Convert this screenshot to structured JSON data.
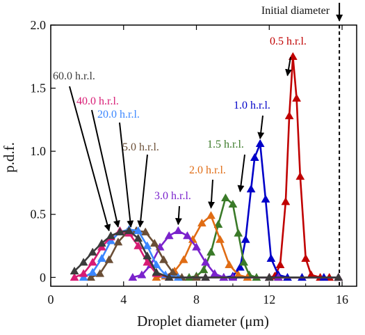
{
  "chart_data": {
    "type": "line",
    "xlabel": "Droplet diameter (μm)",
    "ylabel": "p.d.f.",
    "xlim": [
      0,
      16.8
    ],
    "ylim": [
      -0.07,
      2.0
    ],
    "xticks": [
      0,
      4,
      8,
      12,
      16
    ],
    "xtick_labels": [
      "0",
      "4",
      "8",
      "12",
      "16"
    ],
    "yticks": [
      0,
      0.5,
      1.0,
      1.5,
      2.0
    ],
    "ytick_labels": [
      "0",
      "0.5",
      "1.0",
      "1.5",
      "2.0"
    ],
    "reference_line": {
      "x": 15.85,
      "label": "Initial diameter",
      "style": "dashed"
    },
    "series": [
      {
        "name": "0.5 h.r.l.",
        "color": "#c00000",
        "x": [
          12.0,
          12.3,
          12.6,
          12.9,
          13.1,
          13.3,
          13.5,
          13.7,
          14.0,
          14.3,
          14.8,
          15.3,
          15.8
        ],
        "y": [
          0.0,
          0.01,
          0.1,
          0.6,
          1.28,
          1.75,
          1.42,
          0.8,
          0.15,
          0.02,
          0.0,
          0.0,
          0.0
        ],
        "annotation": {
          "text": "0.5 h.r.l.",
          "target": [
            13.0,
            1.6
          ]
        }
      },
      {
        "name": "1.0 h.r.l.",
        "color": "#0000c8",
        "x": [
          9.5,
          10.0,
          10.4,
          10.7,
          11.0,
          11.2,
          11.5,
          11.8,
          12.1,
          12.5,
          13.0,
          13.8,
          15.0,
          15.8
        ],
        "y": [
          0.0,
          0.01,
          0.08,
          0.3,
          0.7,
          0.95,
          1.06,
          0.62,
          0.15,
          0.02,
          0.0,
          0.0,
          0.0,
          0.0
        ],
        "annotation": {
          "text": "1.0 h.r.l.",
          "target": [
            11.5,
            1.1
          ]
        }
      },
      {
        "name": "1.5 h.r.l.",
        "color": "#3a7a28",
        "x": [
          7.6,
          8.0,
          8.4,
          8.8,
          9.2,
          9.6,
          10.0,
          10.3,
          10.6,
          10.9,
          11.3,
          12.5,
          15.8
        ],
        "y": [
          0.0,
          0.01,
          0.06,
          0.2,
          0.42,
          0.63,
          0.58,
          0.35,
          0.12,
          0.02,
          0.0,
          0.0,
          0.0
        ],
        "annotation": {
          "text": "1.5 h.r.l.",
          "target": [
            10.4,
            0.68
          ]
        }
      },
      {
        "name": "2.0 h.r.l.",
        "color": "#e06c14",
        "x": [
          5.8,
          6.3,
          6.8,
          7.3,
          7.8,
          8.3,
          8.8,
          9.3,
          9.8,
          10.3,
          10.8,
          12.5,
          15.8
        ],
        "y": [
          0.0,
          0.01,
          0.05,
          0.14,
          0.3,
          0.43,
          0.49,
          0.3,
          0.1,
          0.02,
          0.0,
          0.0,
          0.0
        ],
        "annotation": {
          "text": "2.0 h.r.l.",
          "target": [
            8.8,
            0.55
          ]
        }
      },
      {
        "name": "3.0 h.r.l.",
        "color": "#7a22cc",
        "x": [
          4.5,
          5.0,
          5.5,
          6.0,
          6.5,
          7.0,
          7.5,
          8.0,
          8.5,
          9.0,
          9.5,
          10.0,
          12.5,
          15.8
        ],
        "y": [
          0.0,
          0.02,
          0.1,
          0.24,
          0.33,
          0.37,
          0.33,
          0.24,
          0.12,
          0.03,
          0.0,
          0.0,
          0.0,
          0.0
        ],
        "annotation": {
          "text": "3.0 h.r.l.",
          "target": [
            7.0,
            0.42
          ]
        }
      },
      {
        "name": "5.0 h.r.l.",
        "color": "#6a4e36",
        "x": [
          2.2,
          2.7,
          3.2,
          3.7,
          4.2,
          4.7,
          5.2,
          5.7,
          6.2,
          6.7,
          7.2,
          8.0,
          12.0,
          15.8
        ],
        "y": [
          0.0,
          0.03,
          0.14,
          0.28,
          0.36,
          0.37,
          0.36,
          0.27,
          0.14,
          0.04,
          0.0,
          0.0,
          0.0,
          0.0
        ],
        "annotation": {
          "text": "5.0 h.r.l.",
          "target": [
            4.9,
            0.4
          ]
        }
      },
      {
        "name": "20.0 h.r.l.",
        "color": "#3a86ff",
        "x": [
          1.8,
          2.3,
          2.8,
          3.3,
          3.8,
          4.3,
          4.8,
          5.3,
          5.8,
          6.3,
          7.0,
          8.5,
          12.0,
          15.8
        ],
        "y": [
          0.0,
          0.04,
          0.15,
          0.29,
          0.36,
          0.38,
          0.37,
          0.25,
          0.1,
          0.02,
          0.0,
          0.0,
          0.0,
          0.0
        ],
        "annotation": {
          "text": "20.0 h.r.l.",
          "target": [
            4.4,
            0.4
          ]
        }
      },
      {
        "name": "40.0 h.r.l.",
        "color": "#d81b74",
        "x": [
          1.3,
          1.8,
          2.3,
          2.8,
          3.3,
          3.8,
          4.3,
          4.8,
          5.3,
          5.8,
          6.5,
          8.5,
          12.0,
          15.8
        ],
        "y": [
          0.0,
          0.03,
          0.12,
          0.24,
          0.32,
          0.37,
          0.35,
          0.25,
          0.12,
          0.03,
          0.0,
          0.0,
          0.0,
          0.0
        ],
        "annotation": {
          "text": "40.0 h.r.l.",
          "target": [
            3.7,
            0.4
          ]
        }
      },
      {
        "name": "60.0 h.r.l.",
        "color": "#3b3b3b",
        "x": [
          1.3,
          1.8,
          2.3,
          2.8,
          3.3,
          3.8,
          4.3,
          4.8,
          5.3,
          5.8,
          6.5,
          8.5,
          12.0,
          15.8
        ],
        "y": [
          0.05,
          0.12,
          0.2,
          0.27,
          0.33,
          0.36,
          0.37,
          0.31,
          0.17,
          0.04,
          0.0,
          0.0,
          0.0,
          0.0
        ],
        "annotation": {
          "text": "60.0 h.r.l.",
          "target": [
            3.2,
            0.37
          ]
        }
      }
    ]
  }
}
